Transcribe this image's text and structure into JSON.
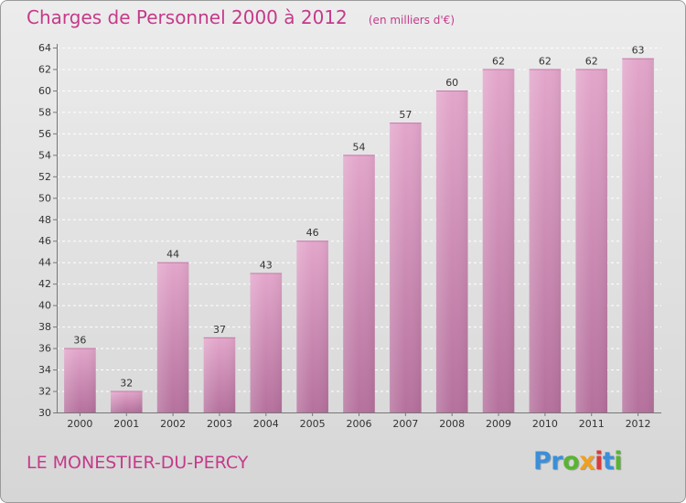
{
  "chart_data": {
    "type": "bar",
    "title": "Charges de Personnel 2000 à 2012",
    "subtitle": "(en milliers d'€)",
    "categories": [
      "2000",
      "2001",
      "2002",
      "2003",
      "2004",
      "2005",
      "2006",
      "2007",
      "2008",
      "2009",
      "2010",
      "2011",
      "2012"
    ],
    "values": [
      36,
      32,
      44,
      37,
      43,
      46,
      54,
      57,
      60,
      62,
      62,
      62,
      63
    ],
    "value_labels": [
      "36",
      "32",
      "44",
      "37",
      "43",
      "46",
      "54",
      "57",
      "60",
      "62",
      "62",
      "62",
      "63"
    ],
    "yticks": [
      "30",
      "32",
      "34",
      "36",
      "38",
      "40",
      "42",
      "44",
      "46",
      "48",
      "50",
      "52",
      "54",
      "56",
      "58",
      "60",
      "62",
      "64"
    ],
    "ylim": [
      30,
      64
    ],
    "grid": true,
    "bar_color": "#d98bbb"
  },
  "footer": {
    "commune": "LE MONESTIER-DU-PERCY",
    "logo_letters": [
      {
        "char": "P",
        "color": "#3b8fd8"
      },
      {
        "char": "r",
        "color": "#3b8fd8"
      },
      {
        "char": "o",
        "color": "#58b531"
      },
      {
        "char": "x",
        "color": "#f0a020"
      },
      {
        "char": "i",
        "color": "#d83b3b"
      },
      {
        "char": "t",
        "color": "#3b8fd8"
      },
      {
        "char": "i",
        "color": "#58b531"
      }
    ]
  }
}
